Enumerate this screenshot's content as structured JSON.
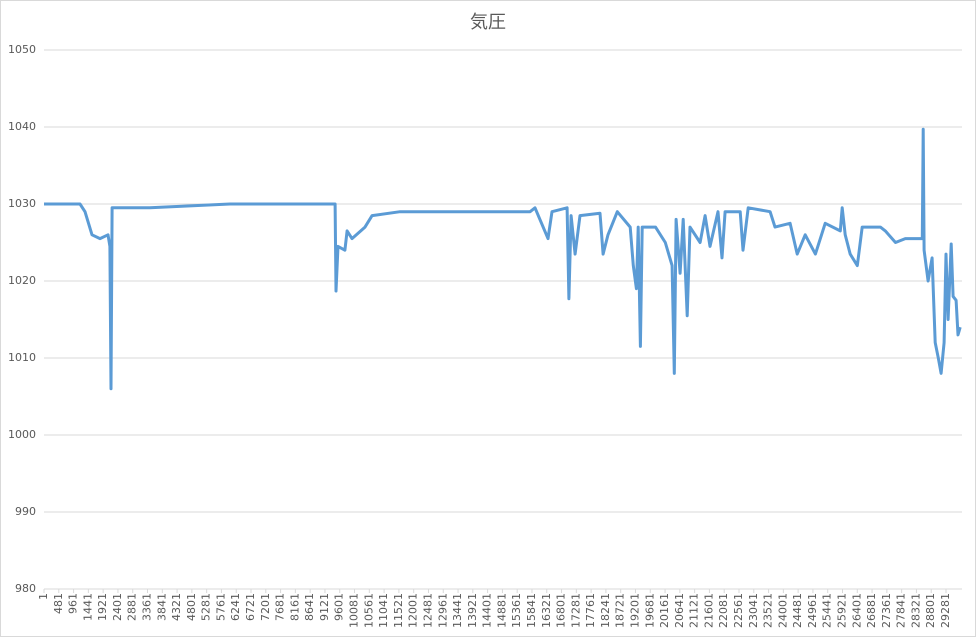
{
  "chart_data": {
    "type": "line",
    "title": "気圧",
    "color": "#5b9bd5",
    "grid": true,
    "ylim": [
      980,
      1050
    ],
    "yticks": [
      980,
      990,
      1000,
      1010,
      1020,
      1030,
      1040,
      1050
    ],
    "xlim": [
      1,
      29800
    ],
    "xticks": [
      1,
      481,
      961,
      1441,
      1921,
      2401,
      2881,
      3361,
      3841,
      4321,
      4801,
      5281,
      5761,
      6241,
      6721,
      7201,
      7681,
      8161,
      8641,
      9121,
      9601,
      10081,
      10561,
      11041,
      11521,
      12001,
      12481,
      12961,
      13441,
      13921,
      14401,
      14881,
      15361,
      15841,
      16321,
      16801,
      17281,
      17761,
      18241,
      18721,
      19201,
      19681,
      20161,
      20641,
      21121,
      21601,
      22081,
      22561,
      23041,
      23521,
      24001,
      24481,
      24961,
      25441,
      25921,
      26401,
      26881,
      27361,
      27841,
      28321,
      28801,
      29281
    ],
    "x": [
      1,
      1170,
      1333,
      1560,
      1820,
      2080,
      2140,
      2175,
      2210,
      3440,
      6040,
      8310,
      9450,
      9480,
      9545,
      9770,
      9840,
      10000,
      10420,
      10650,
      11560,
      14800,
      15780,
      15940,
      16360,
      16490,
      16980,
      17040,
      17110,
      17240,
      17400,
      18050,
      18150,
      18310,
      18610,
      19030,
      19130,
      19230,
      19290,
      19360,
      19420,
      19850,
      20170,
      20390,
      20460,
      20520,
      20650,
      20750,
      20880,
      20970,
      21300,
      21460,
      21620,
      21880,
      22010,
      22110,
      22600,
      22690,
      22860,
      23570,
      23730,
      24220,
      24450,
      24710,
      25040,
      25360,
      25850,
      25910,
      26010,
      26170,
      26400,
      26560,
      27150,
      27310,
      27640,
      27960,
      28510,
      28540,
      28570,
      28700,
      28830,
      28930,
      29030,
      29120,
      29220,
      29280,
      29350,
      29450,
      29510,
      29610,
      29670,
      29740
    ],
    "values": [
      1030,
      1030,
      1029,
      1026,
      1025.5,
      1026,
      1024.5,
      1006,
      1029.5,
      1029.5,
      1030,
      1030,
      1030,
      1018.7,
      1024.5,
      1024,
      1026.5,
      1025.5,
      1027,
      1028.5,
      1029,
      1029,
      1029,
      1029.5,
      1025.5,
      1029,
      1029.5,
      1017.7,
      1028.5,
      1023.5,
      1028.5,
      1028.8,
      1023.5,
      1026,
      1029,
      1027,
      1022,
      1019,
      1027,
      1011.5,
      1027,
      1027,
      1025,
      1022,
      1008,
      1028,
      1021,
      1028,
      1015.5,
      1027,
      1025,
      1028.5,
      1024.5,
      1029,
      1023,
      1029,
      1029,
      1024,
      1029.5,
      1029,
      1027,
      1027.5,
      1023.5,
      1026,
      1023.5,
      1027.5,
      1026.5,
      1029.5,
      1026,
      1023.5,
      1022,
      1027,
      1027,
      1026.5,
      1025,
      1025.5,
      1025.5,
      1039.7,
      1024,
      1020,
      1023,
      1012,
      1010,
      1008,
      1012,
      1023.5,
      1015,
      1024.8,
      1018,
      1017.5,
      1013,
      1014
    ]
  }
}
